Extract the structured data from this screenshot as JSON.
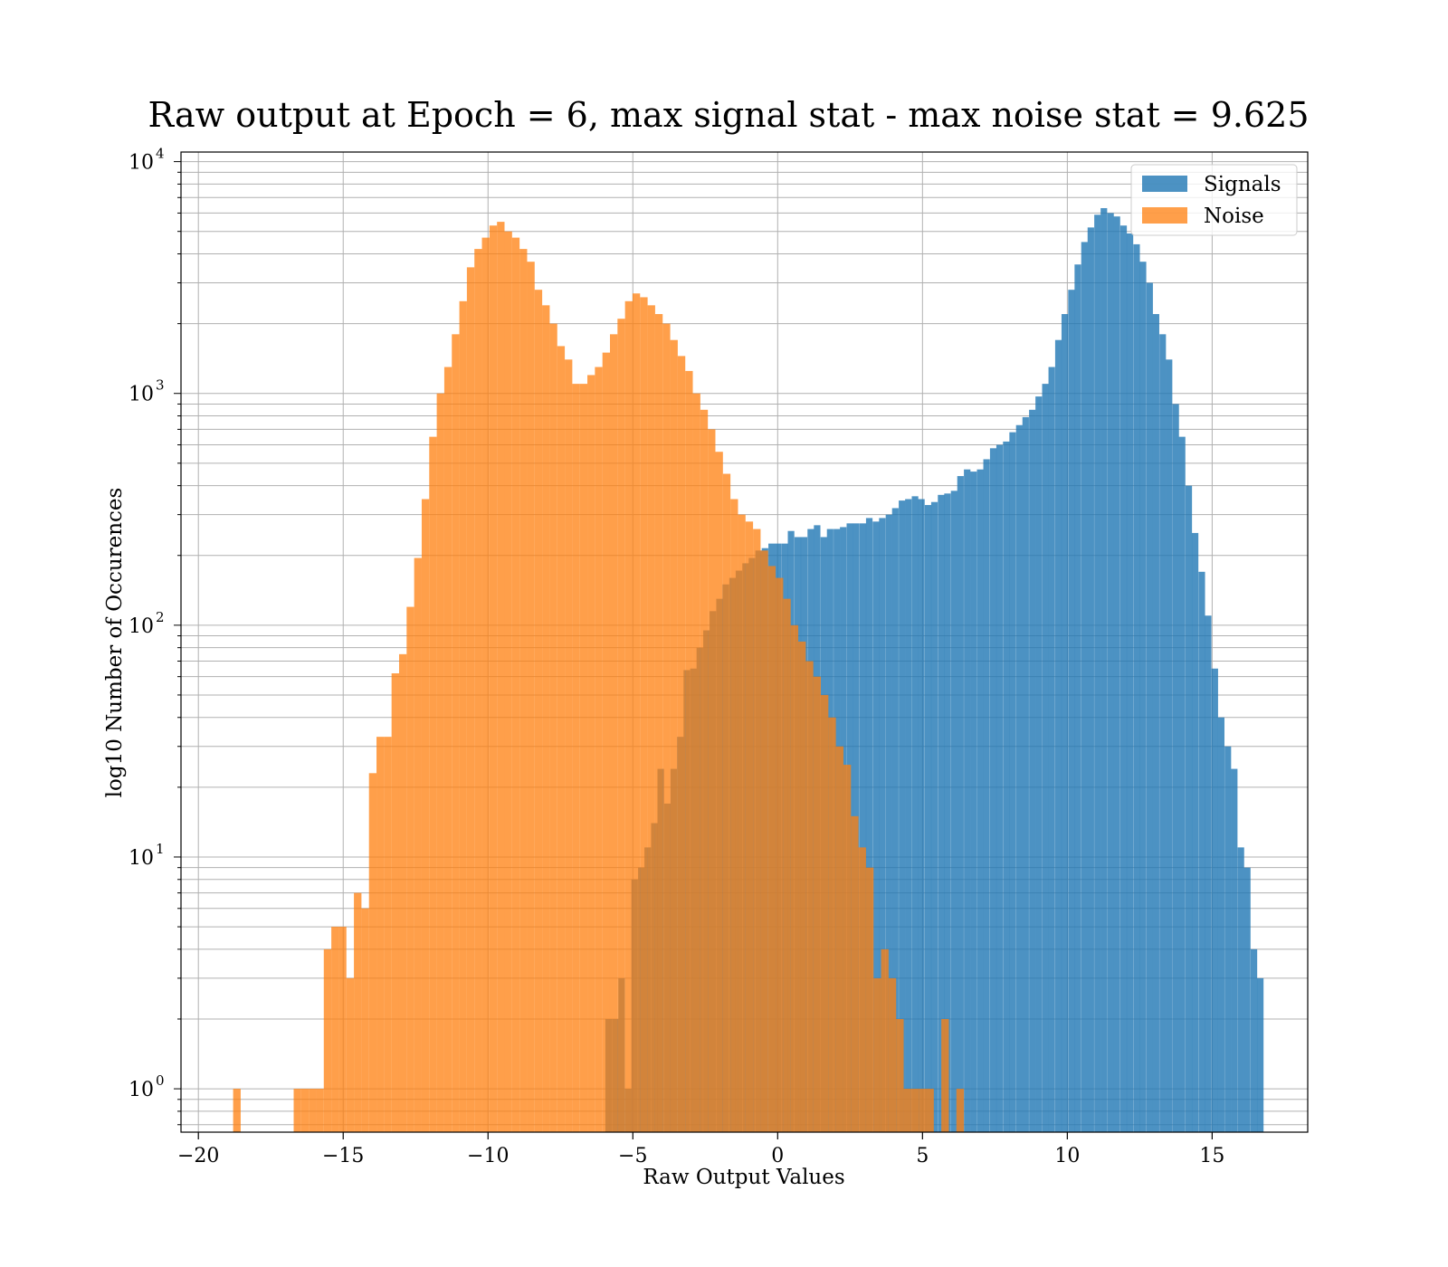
{
  "chart_data": {
    "type": "histogram",
    "title": "Raw output at Epoch = 6, max signal stat - max noise stat = 9.625",
    "xlabel": "Raw Output Values",
    "ylabel": "log10 Number of Occurences",
    "xlim": [
      -20.6,
      18.3
    ],
    "ylim": [
      0.65,
      11000
    ],
    "yscale": "log",
    "x_ticks": [
      -20,
      -15,
      -10,
      -5,
      0,
      5,
      10,
      15
    ],
    "x_tick_labels": [
      "−20",
      "−15",
      "−10",
      "−5",
      "0",
      "5",
      "10",
      "15"
    ],
    "y_ticks": [
      {
        "value": 1,
        "base": "10",
        "exp": "0"
      },
      {
        "value": 10,
        "base": "10",
        "exp": "1"
      },
      {
        "value": 100,
        "base": "10",
        "exp": "2"
      },
      {
        "value": 1000,
        "base": "10",
        "exp": "3"
      },
      {
        "value": 10000,
        "base": "10",
        "exp": "4"
      }
    ],
    "grid": true,
    "legend_position": "top-right",
    "series": [
      {
        "name": "Signals",
        "color": "#1f77b4",
        "opacity": 0.8,
        "bin_width": 0.225,
        "bins": [
          [
            -5.95,
            2
          ],
          [
            -5.72,
            2
          ],
          [
            -5.5,
            3
          ],
          [
            -5.27,
            1
          ],
          [
            -5.05,
            8
          ],
          [
            -4.82,
            9
          ],
          [
            -4.6,
            11
          ],
          [
            -4.37,
            14
          ],
          [
            -4.15,
            24
          ],
          [
            -3.92,
            17
          ],
          [
            -3.7,
            24
          ],
          [
            -3.47,
            33
          ],
          [
            -3.25,
            64
          ],
          [
            -3.02,
            65
          ],
          [
            -2.8,
            80
          ],
          [
            -2.57,
            95
          ],
          [
            -2.35,
            115
          ],
          [
            -2.12,
            130
          ],
          [
            -1.9,
            150
          ],
          [
            -1.67,
            160
          ],
          [
            -1.45,
            172
          ],
          [
            -1.22,
            185
          ],
          [
            -1.0,
            195
          ],
          [
            -0.77,
            210
          ],
          [
            -0.55,
            215
          ],
          [
            -0.32,
            225
          ],
          [
            -0.1,
            225
          ],
          [
            0.13,
            225
          ],
          [
            0.35,
            255
          ],
          [
            0.58,
            240
          ],
          [
            0.8,
            240
          ],
          [
            1.03,
            260
          ],
          [
            1.25,
            270
          ],
          [
            1.48,
            240
          ],
          [
            1.7,
            260
          ],
          [
            1.93,
            260
          ],
          [
            2.15,
            265
          ],
          [
            2.38,
            275
          ],
          [
            2.6,
            275
          ],
          [
            2.83,
            275
          ],
          [
            3.05,
            290
          ],
          [
            3.28,
            280
          ],
          [
            3.5,
            290
          ],
          [
            3.73,
            300
          ],
          [
            3.95,
            320
          ],
          [
            4.18,
            345
          ],
          [
            4.4,
            350
          ],
          [
            4.63,
            360
          ],
          [
            4.85,
            350
          ],
          [
            5.08,
            330
          ],
          [
            5.3,
            340
          ],
          [
            5.53,
            365
          ],
          [
            5.75,
            370
          ],
          [
            5.98,
            380
          ],
          [
            6.2,
            440
          ],
          [
            6.43,
            470
          ],
          [
            6.65,
            460
          ],
          [
            6.88,
            470
          ],
          [
            7.1,
            520
          ],
          [
            7.33,
            580
          ],
          [
            7.55,
            600
          ],
          [
            7.78,
            620
          ],
          [
            8.0,
            680
          ],
          [
            8.23,
            730
          ],
          [
            8.45,
            790
          ],
          [
            8.68,
            850
          ],
          [
            8.9,
            970
          ],
          [
            9.13,
            1100
          ],
          [
            9.35,
            1300
          ],
          [
            9.58,
            1700
          ],
          [
            9.8,
            2200
          ],
          [
            10.03,
            2800
          ],
          [
            10.25,
            3600
          ],
          [
            10.48,
            4500
          ],
          [
            10.7,
            5200
          ],
          [
            10.93,
            5900
          ],
          [
            11.15,
            6300
          ],
          [
            11.38,
            6000
          ],
          [
            11.6,
            5800
          ],
          [
            11.83,
            5300
          ],
          [
            12.05,
            4900
          ],
          [
            12.28,
            4400
          ],
          [
            12.5,
            3700
          ],
          [
            12.73,
            3000
          ],
          [
            12.95,
            2200
          ],
          [
            13.18,
            1800
          ],
          [
            13.4,
            1400
          ],
          [
            13.63,
            900
          ],
          [
            13.85,
            650
          ],
          [
            14.08,
            400
          ],
          [
            14.3,
            250
          ],
          [
            14.53,
            170
          ],
          [
            14.75,
            110
          ],
          [
            14.98,
            65
          ],
          [
            15.2,
            40
          ],
          [
            15.43,
            30
          ],
          [
            15.65,
            24
          ],
          [
            15.88,
            11
          ],
          [
            16.1,
            9
          ],
          [
            16.33,
            4
          ],
          [
            16.55,
            3
          ]
        ]
      },
      {
        "name": "Noise",
        "color": "#ff7f0e",
        "opacity": 0.75,
        "bin_width": 0.26,
        "bins": [
          [
            -18.8,
            1
          ],
          [
            -16.71,
            1
          ],
          [
            -16.45,
            1
          ],
          [
            -16.19,
            1
          ],
          [
            -15.93,
            1
          ],
          [
            -15.67,
            4
          ],
          [
            -15.41,
            5
          ],
          [
            -15.15,
            5
          ],
          [
            -14.89,
            3
          ],
          [
            -14.63,
            7
          ],
          [
            -14.37,
            6
          ],
          [
            -14.11,
            23
          ],
          [
            -13.85,
            33
          ],
          [
            -13.59,
            33
          ],
          [
            -13.33,
            62
          ],
          [
            -13.07,
            75
          ],
          [
            -12.81,
            120
          ],
          [
            -12.55,
            195
          ],
          [
            -12.29,
            350
          ],
          [
            -12.03,
            650
          ],
          [
            -11.77,
            1000
          ],
          [
            -11.51,
            1300
          ],
          [
            -11.25,
            1800
          ],
          [
            -10.99,
            2500
          ],
          [
            -10.73,
            3500
          ],
          [
            -10.47,
            4200
          ],
          [
            -10.21,
            4700
          ],
          [
            -9.95,
            5300
          ],
          [
            -9.69,
            5500
          ],
          [
            -9.43,
            5000
          ],
          [
            -9.17,
            4700
          ],
          [
            -8.91,
            4200
          ],
          [
            -8.65,
            3700
          ],
          [
            -8.39,
            2800
          ],
          [
            -8.13,
            2400
          ],
          [
            -7.87,
            2000
          ],
          [
            -7.61,
            1600
          ],
          [
            -7.35,
            1400
          ],
          [
            -7.09,
            1100
          ],
          [
            -6.83,
            1100
          ],
          [
            -6.57,
            1200
          ],
          [
            -6.31,
            1300
          ],
          [
            -6.05,
            1500
          ],
          [
            -5.79,
            1800
          ],
          [
            -5.53,
            2100
          ],
          [
            -5.27,
            2500
          ],
          [
            -5.01,
            2700
          ],
          [
            -4.75,
            2600
          ],
          [
            -4.49,
            2400
          ],
          [
            -4.23,
            2200
          ],
          [
            -3.97,
            2000
          ],
          [
            -3.71,
            1700
          ],
          [
            -3.45,
            1450
          ],
          [
            -3.19,
            1250
          ],
          [
            -2.93,
            1000
          ],
          [
            -2.67,
            850
          ],
          [
            -2.41,
            700
          ],
          [
            -2.15,
            560
          ],
          [
            -1.89,
            450
          ],
          [
            -1.63,
            350
          ],
          [
            -1.37,
            300
          ],
          [
            -1.11,
            280
          ],
          [
            -0.85,
            260
          ],
          [
            -0.59,
            210
          ],
          [
            -0.33,
            180
          ],
          [
            -0.07,
            160
          ],
          [
            0.19,
            130
          ],
          [
            0.45,
            100
          ],
          [
            0.71,
            85
          ],
          [
            0.97,
            70
          ],
          [
            1.23,
            60
          ],
          [
            1.49,
            50
          ],
          [
            1.75,
            40
          ],
          [
            2.01,
            30
          ],
          [
            2.27,
            25
          ],
          [
            2.53,
            15
          ],
          [
            2.79,
            11
          ],
          [
            3.05,
            9
          ],
          [
            3.31,
            3
          ],
          [
            3.57,
            4
          ],
          [
            3.83,
            3
          ],
          [
            4.09,
            2
          ],
          [
            4.35,
            1
          ],
          [
            4.61,
            1
          ],
          [
            4.87,
            1
          ],
          [
            5.13,
            1
          ],
          [
            5.65,
            2
          ],
          [
            6.17,
            1
          ]
        ]
      }
    ]
  }
}
